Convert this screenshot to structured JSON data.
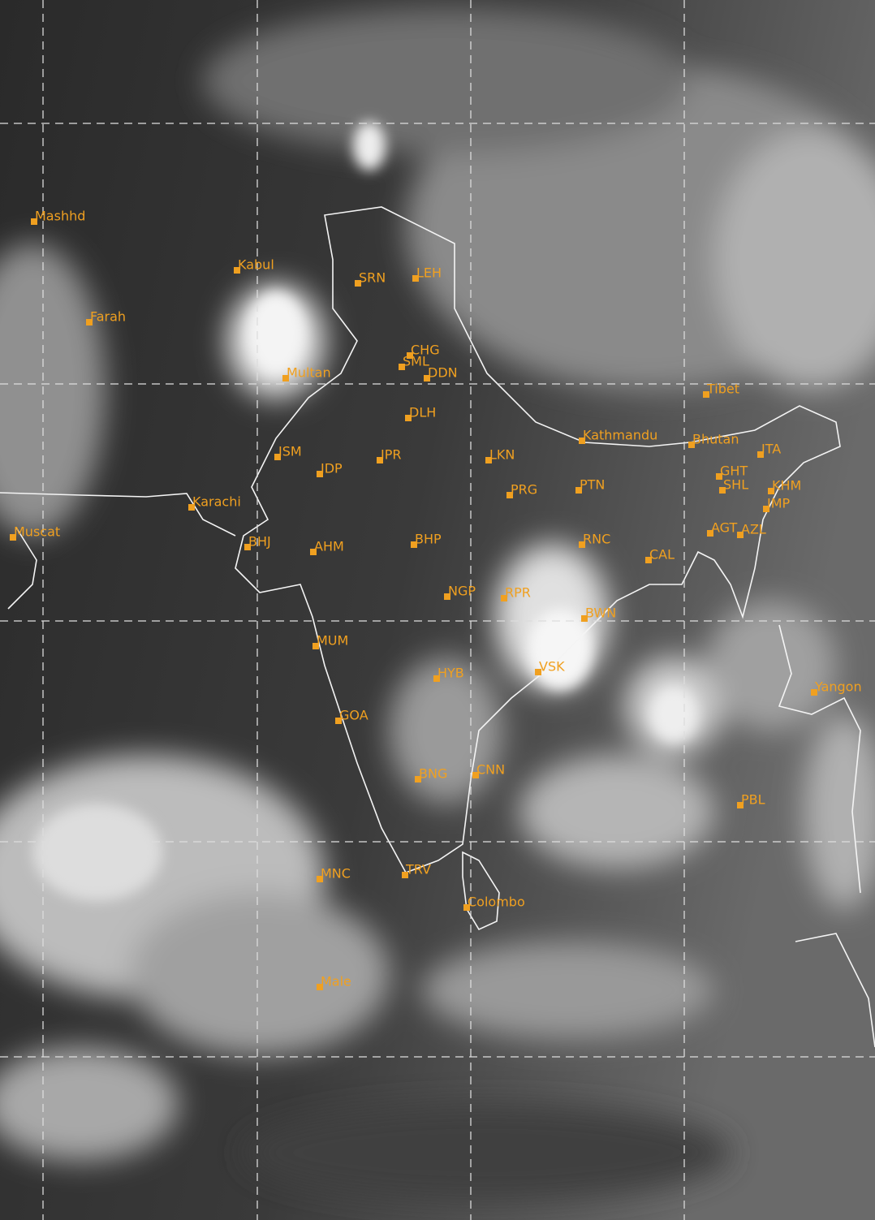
{
  "map": {
    "labels": [
      "Mashhd",
      "Kabul",
      "Farah",
      "SRN",
      "LEH",
      "SML",
      "CHG",
      "DDN",
      "Multan",
      "Tibet",
      "DLH",
      "Kathmandu",
      "Bhutan",
      "ITA",
      "JSM",
      "JPR",
      "LKN",
      "JDP",
      "GHT",
      "SHL",
      "KHM",
      "PTN",
      "PRG",
      "Karachi",
      "IMP",
      "Muscat",
      "BHJ",
      "AHM",
      "BHP",
      "RNC",
      "AGT",
      "AZL",
      "CAL",
      "NGP",
      "RPR",
      "BWN",
      "MUM",
      "VSK",
      "HYB",
      "Yangon",
      "GOA",
      "BNG",
      "CNN",
      "PBL",
      "MNC",
      "TRV",
      "Colombo",
      "Male"
    ]
  }
}
